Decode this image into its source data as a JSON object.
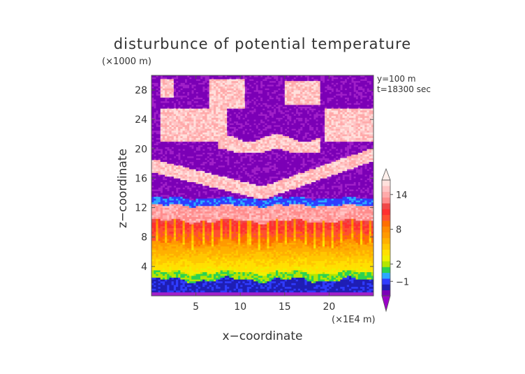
{
  "chart_data": {
    "type": "heatmap",
    "title": "disturbunce of potential temperature",
    "z_unit": "(×1000 m)",
    "x_unit": "(×1E4 m)",
    "xlabel": "x−coordinate",
    "ylabel": "z−coordinate",
    "annotations": [
      "y=100 m",
      "t=18300 sec"
    ],
    "xlim": [
      0,
      25
    ],
    "ylim": [
      0,
      30
    ],
    "x_ticks": [
      5,
      10,
      15,
      20
    ],
    "y_ticks": [
      4,
      8,
      12,
      16,
      20,
      24,
      28
    ],
    "colorbar": {
      "labels": [
        {
          "value": 14,
          "text": "14"
        },
        {
          "value": 8,
          "text": "8"
        },
        {
          "value": 2,
          "text": "2"
        },
        {
          "value": -1,
          "text": "−1"
        }
      ],
      "levels": [
        {
          "value": -3,
          "color": "#7b00b6"
        },
        {
          "value": -2,
          "color": "#1e1eb4"
        },
        {
          "value": -1,
          "color": "#2f3cff"
        },
        {
          "value": 0,
          "color": "#2ca8ff"
        },
        {
          "value": 1,
          "color": "#2cd250"
        },
        {
          "value": 2,
          "color": "#b4e600"
        },
        {
          "value": 3,
          "color": "#f0f000"
        },
        {
          "value": 4,
          "color": "#ffe000"
        },
        {
          "value": 5,
          "color": "#ffc800"
        },
        {
          "value": 6,
          "color": "#ffb000"
        },
        {
          "value": 7,
          "color": "#ff9a00"
        },
        {
          "value": 8,
          "color": "#ff8a00"
        },
        {
          "value": 9,
          "color": "#ff6e00"
        },
        {
          "value": 10,
          "color": "#ff5030"
        },
        {
          "value": 11,
          "color": "#ff3030"
        },
        {
          "value": 12,
          "color": "#f04848"
        },
        {
          "value": 13,
          "color": "#ff8c8c"
        },
        {
          "value": 14,
          "color": "#ffaaaa"
        },
        {
          "value": 15,
          "color": "#ffc4c4"
        },
        {
          "value": 16,
          "color": "#ffe0dc"
        }
      ],
      "over_color": "#fff0ec",
      "under_color": "#9b00c8"
    },
    "field_background_color": "#a020c8",
    "layers": [
      {
        "name": "surface-blue",
        "z_range": [
          0.5,
          2.5
        ],
        "value": -2
      },
      {
        "name": "low-warm",
        "z_range": [
          2,
          7
        ],
        "value": 5
      },
      {
        "name": "mid-warm",
        "z_range": [
          7,
          11
        ],
        "value": 10
      },
      {
        "name": "upper-pink",
        "z_range": [
          10,
          12.5
        ],
        "value": 14
      },
      {
        "name": "tropopause-blue",
        "z_range": [
          12.5,
          13.5
        ],
        "value": -1
      }
    ]
  }
}
